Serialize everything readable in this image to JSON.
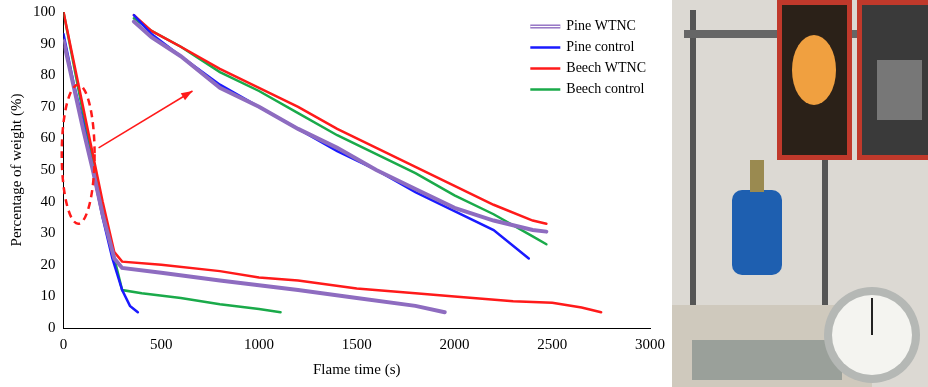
{
  "chart_data": {
    "type": "line",
    "x_label": "Flame time (s)",
    "y_label": "Percentage of weight (%)",
    "xlim": [
      0,
      3000
    ],
    "xticks": [
      0,
      500,
      1000,
      1500,
      2000,
      2500,
      3000
    ],
    "ylim": [
      0,
      100
    ],
    "yticks": [
      0,
      10,
      20,
      30,
      40,
      50,
      60,
      70,
      80,
      90,
      100
    ],
    "grid": false,
    "legend": "top right",
    "series": [
      {
        "name": "Pine WTNC",
        "color": "#8e6cc0",
        "line_style": "double",
        "x": [
          0,
          50,
          100,
          150,
          200,
          260,
          300,
          500,
          800,
          1000,
          1200,
          1500,
          1800,
          1950
        ],
        "values": [
          91,
          77,
          63,
          50,
          36,
          22,
          19,
          17.5,
          15,
          13.5,
          12,
          9.5,
          7,
          5
        ]
      },
      {
        "name": "Pine control",
        "color": "#1a1aff",
        "line_style": "solid",
        "x": [
          0,
          50,
          100,
          150,
          200,
          250,
          300,
          340,
          380
        ],
        "values": [
          93,
          78,
          65,
          50,
          35,
          22,
          12,
          7,
          5
        ]
      },
      {
        "name": "Beech WTNC",
        "color": "#ff1a1a",
        "line_style": "solid",
        "x": [
          0,
          50,
          100,
          150,
          200,
          260,
          300,
          500,
          800,
          1000,
          1200,
          1500,
          1800,
          2000,
          2300,
          2500,
          2650,
          2750
        ],
        "values": [
          100,
          85,
          70,
          55,
          40,
          24,
          21,
          20,
          18,
          16,
          15,
          12.5,
          11,
          10,
          8.5,
          8,
          6.5,
          5
        ]
      },
      {
        "name": "Beech control",
        "color": "#1aaa4a",
        "line_style": "solid",
        "x": [
          0,
          50,
          100,
          150,
          200,
          260,
          300,
          400,
          600,
          800,
          1000,
          1110
        ],
        "values": [
          100,
          84,
          68,
          53,
          38,
          22,
          12,
          11,
          9.5,
          7.5,
          6,
          5
        ]
      }
    ],
    "zoom_series": [
      {
        "color": "#8e6cc0",
        "line_style": "double",
        "x": [
          360,
          450,
          600,
          800,
          1000,
          1200,
          1400,
          1600,
          1800,
          2000,
          2200,
          2400,
          2470
        ],
        "values": [
          97,
          92,
          86,
          76,
          70,
          63,
          57,
          50,
          44,
          38,
          34,
          31,
          30.5
        ]
      },
      {
        "color": "#1a1aff",
        "line_style": "solid",
        "x": [
          360,
          450,
          600,
          800,
          1000,
          1200,
          1400,
          1600,
          1800,
          2000,
          2200,
          2380
        ],
        "values": [
          99,
          93,
          86,
          77,
          70,
          63,
          56,
          50,
          43,
          37,
          31,
          22
        ]
      },
      {
        "color": "#ff1a1a",
        "line_style": "solid",
        "x": [
          360,
          450,
          600,
          800,
          1000,
          1200,
          1400,
          1600,
          1800,
          2000,
          2200,
          2400,
          2470
        ],
        "values": [
          99,
          94,
          89,
          82,
          76,
          70,
          63,
          57,
          51,
          45,
          39,
          34,
          33
        ]
      },
      {
        "color": "#1aaa4a",
        "line_style": "solid",
        "x": [
          360,
          450,
          600,
          800,
          1000,
          1200,
          1400,
          1600,
          1800,
          2000,
          2200,
          2400,
          2470
        ],
        "values": [
          98,
          94,
          89,
          81,
          75,
          68,
          61,
          55,
          49,
          42,
          36,
          29,
          26.5
        ]
      }
    ]
  }
}
